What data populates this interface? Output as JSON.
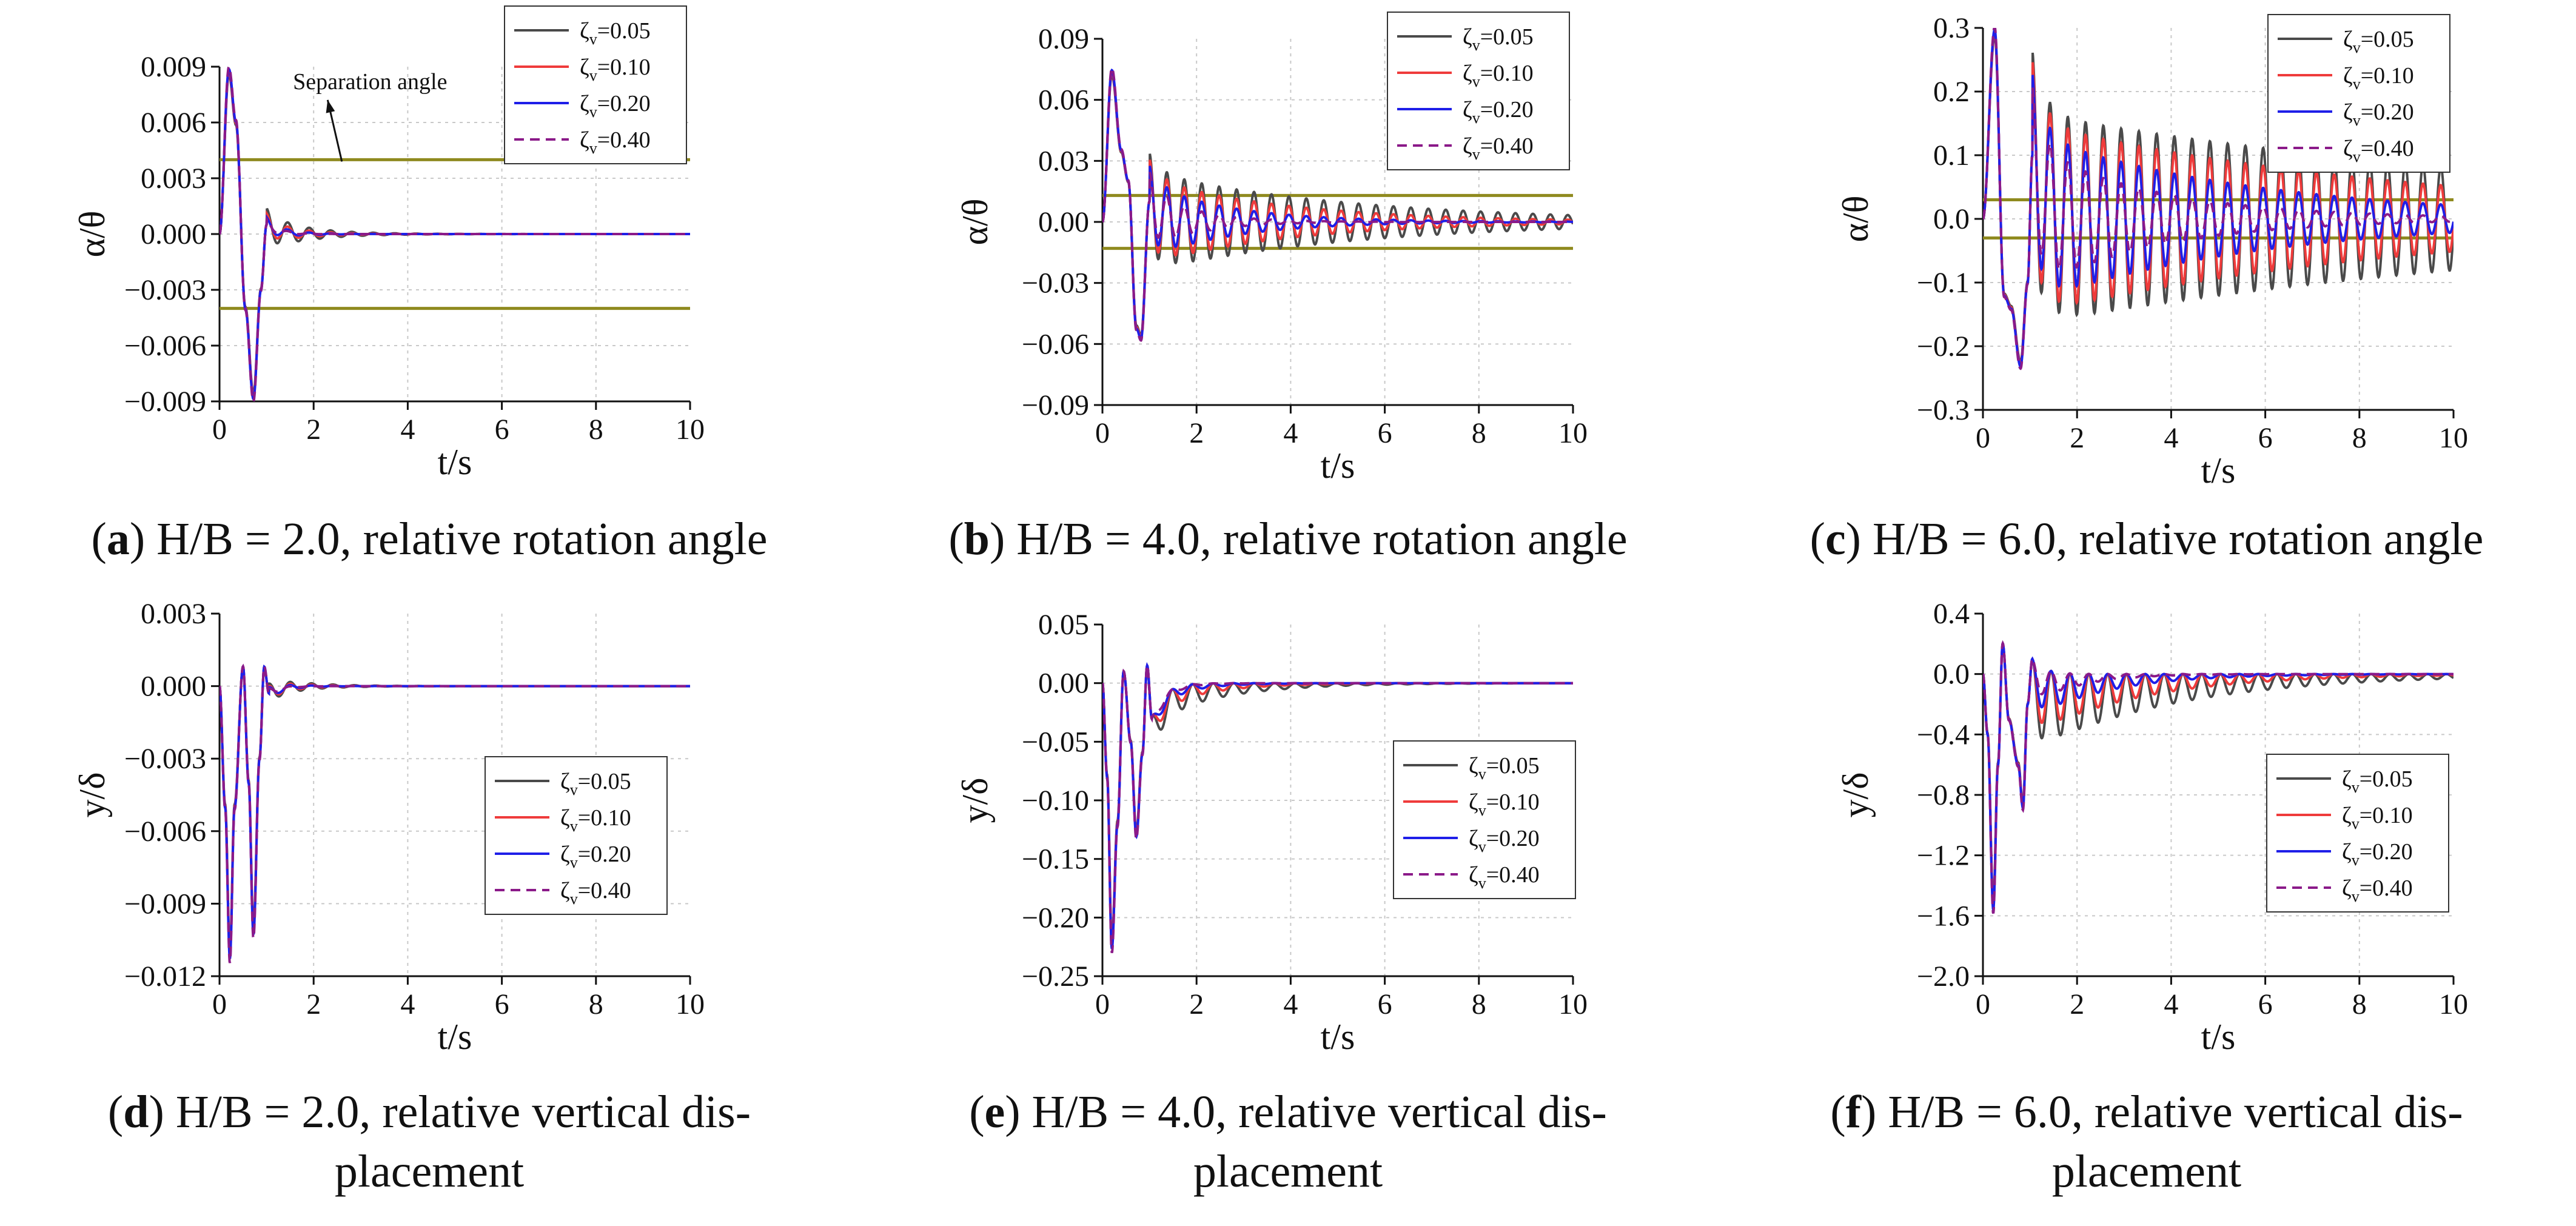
{
  "legend_colors": {
    "z005": "#4a4a4a",
    "z010": "#ef3b3b",
    "z020": "#1f1fe8",
    "z040": "#8b1a89"
  },
  "line_color_separation": "#8f8a1f",
  "chart_data": [
    {
      "id": "a",
      "type": "line",
      "title": "(a) H/B = 2.0, relative rotation angle",
      "caption": {
        "letter": "a",
        "text": " H/B = 2.0, relative rotation angle"
      },
      "xlabel": "t/s",
      "ylabel": "α/θ",
      "xlim": [
        0,
        10
      ],
      "ylim": [
        -0.009,
        0.009
      ],
      "xticks": [
        "0",
        "2",
        "4",
        "6",
        "8",
        "10"
      ],
      "yticks": [
        "0.009",
        "0.006",
        "0.003",
        "0.000",
        "−0.003",
        "−0.006",
        "−0.009"
      ],
      "legend_position": "top-right",
      "series": [
        {
          "name": "ζv=0.05",
          "sub": "v",
          "label_pre": "ζ",
          "label_post": "=0.05",
          "zeta": 0.05,
          "amplitude": 0.0009,
          "style": "solid"
        },
        {
          "name": "ζv=0.10",
          "sub": "v",
          "label_pre": "ζ",
          "label_post": "=0.10",
          "zeta": 0.1,
          "amplitude": 0.0006,
          "style": "solid"
        },
        {
          "name": "ζv=0.20",
          "sub": "v",
          "label_pre": "ζ",
          "label_post": "=0.20",
          "zeta": 0.2,
          "amplitude": 0.0004,
          "style": "solid"
        },
        {
          "name": "ζv=0.40",
          "sub": "v",
          "label_pre": "ζ",
          "label_post": "=0.40",
          "zeta": 0.4,
          "amplitude": 0.0003,
          "style": "dashed"
        }
      ],
      "transient": [
        [
          0,
          0
        ],
        [
          0.2,
          0.0088
        ],
        [
          0.35,
          0.006
        ],
        [
          0.55,
          -0.004
        ],
        [
          0.72,
          -0.0088
        ],
        [
          0.88,
          -0.003
        ],
        [
          1.0,
          0.0005
        ]
      ],
      "osc_freq": 2.2,
      "osc_mode": "decay",
      "osc_decay": 1.4,
      "osc_offset": 0,
      "ref_lines": [
        0.004,
        -0.004
      ],
      "annotation": {
        "text": "Separation angle",
        "x": 3.2,
        "y": 0.0078,
        "arrow_to": [
          2.6,
          0.0039
        ]
      }
    },
    {
      "id": "b",
      "type": "line",
      "title": "(b) H/B = 4.0, relative rotation angle",
      "caption": {
        "letter": "b",
        "text": " H/B = 4.0, relative rotation angle"
      },
      "xlabel": "t/s",
      "ylabel": "α/θ",
      "xlim": [
        0,
        10
      ],
      "ylim": [
        -0.09,
        0.09
      ],
      "xticks": [
        "0",
        "2",
        "4",
        "6",
        "8",
        "10"
      ],
      "yticks": [
        "0.09",
        "0.06",
        "0.03",
        "0.00",
        "−0.03",
        "−0.06",
        "−0.09"
      ],
      "legend_position": "top-right",
      "series": [
        {
          "name": "ζv=0.05",
          "sub": "v",
          "label_pre": "ζ",
          "label_post": "=0.05",
          "zeta": 0.05,
          "amplitude": 0.024,
          "style": "solid"
        },
        {
          "name": "ζv=0.10",
          "sub": "v",
          "label_pre": "ζ",
          "label_post": "=0.10",
          "zeta": 0.1,
          "amplitude": 0.021,
          "style": "solid"
        },
        {
          "name": "ζv=0.20",
          "sub": "v",
          "label_pre": "ζ",
          "label_post": "=0.20",
          "zeta": 0.2,
          "amplitude": 0.018,
          "style": "solid"
        },
        {
          "name": "ζv=0.40",
          "sub": "v",
          "label_pre": "ζ",
          "label_post": "=0.40",
          "zeta": 0.4,
          "amplitude": 0.015,
          "style": "dashed"
        }
      ],
      "transient": [
        [
          0,
          0
        ],
        [
          0.2,
          0.074
        ],
        [
          0.4,
          0.035
        ],
        [
          0.55,
          0.02
        ],
        [
          0.72,
          -0.052
        ],
        [
          0.82,
          -0.057
        ],
        [
          1.0,
          0.01
        ]
      ],
      "osc_freq": 2.7,
      "osc_mode": "decay_slow",
      "osc_decay": 0.22,
      "osc_offset": 0,
      "ref_lines": [
        0.013,
        -0.013
      ]
    },
    {
      "id": "c",
      "type": "line",
      "title": "(c) H/B = 6.0, relative rotation angle",
      "caption": {
        "letter": "c",
        "text": " H/B = 6.0, relative rotation angle"
      },
      "xlabel": "t/s",
      "ylabel": "α/θ",
      "xlim": [
        0,
        10
      ],
      "ylim": [
        -0.3,
        0.3
      ],
      "xticks": [
        "0",
        "2",
        "4",
        "6",
        "8",
        "10"
      ],
      "yticks": [
        "0.3",
        "0.2",
        "0.1",
        "0.0",
        "−0.1",
        "−0.2",
        "−0.3"
      ],
      "legend_position": "top-right",
      "series": [
        {
          "name": "ζv=0.05",
          "sub": "v",
          "label_pre": "ζ",
          "label_post": "=0.05",
          "zeta": 0.05,
          "amplitude": 0.165,
          "style": "solid"
        },
        {
          "name": "ζv=0.10",
          "sub": "v",
          "label_pre": "ζ",
          "label_post": "=0.10",
          "zeta": 0.1,
          "amplitude": 0.15,
          "style": "solid"
        },
        {
          "name": "ζv=0.20",
          "sub": "v",
          "label_pre": "ζ",
          "label_post": "=0.20",
          "zeta": 0.2,
          "amplitude": 0.13,
          "style": "solid"
        },
        {
          "name": "ζv=0.40",
          "sub": "v",
          "label_pre": "ζ",
          "label_post": "=0.40",
          "zeta": 0.4,
          "amplitude": 0.11,
          "style": "dashed"
        }
      ],
      "transient": [
        [
          0,
          0
        ],
        [
          0.25,
          0.295
        ],
        [
          0.45,
          -0.12
        ],
        [
          0.6,
          -0.14
        ],
        [
          0.8,
          -0.23
        ],
        [
          0.95,
          -0.1
        ],
        [
          1.05,
          0.1
        ]
      ],
      "osc_freq": 2.65,
      "osc_mode": "decay_slow",
      "osc_decay": 0.08,
      "osc_offset": 0,
      "ref_lines": [
        0.03,
        -0.03
      ]
    },
    {
      "id": "d",
      "type": "line",
      "title": "(d) H/B = 2.0, relative vertical displacement",
      "caption": {
        "letter": "d",
        "text": " H/B = 2.0, relative vertical dis-",
        "line2": "placement"
      },
      "xlabel": "t/s",
      "ylabel": "y/δ",
      "xlim": [
        0,
        10
      ],
      "ylim": [
        -0.012,
        0.003
      ],
      "xticks": [
        "0",
        "2",
        "4",
        "6",
        "8",
        "10"
      ],
      "yticks": [
        "0.003",
        "0.000",
        "−0.003",
        "−0.006",
        "−0.009",
        "−0.012"
      ],
      "legend_position": "center-right",
      "series": [
        {
          "name": "ζv=0.05",
          "sub": "v",
          "label_pre": "ζ",
          "label_post": "=0.05",
          "zeta": 0.05,
          "amplitude": 0.0004,
          "style": "solid"
        },
        {
          "name": "ζv=0.10",
          "sub": "v",
          "label_pre": "ζ",
          "label_post": "=0.10",
          "zeta": 0.1,
          "amplitude": 0.0003,
          "style": "solid"
        },
        {
          "name": "ζv=0.20",
          "sub": "v",
          "label_pre": "ζ",
          "label_post": "=0.20",
          "zeta": 0.2,
          "amplitude": 0.00025,
          "style": "solid"
        },
        {
          "name": "ζv=0.40",
          "sub": "v",
          "label_pre": "ζ",
          "label_post": "=0.40",
          "zeta": 0.4,
          "amplitude": 0.0002,
          "style": "dashed"
        }
      ],
      "transient": [
        [
          0,
          0
        ],
        [
          0.12,
          -0.005
        ],
        [
          0.22,
          -0.0112
        ],
        [
          0.32,
          -0.005
        ],
        [
          0.5,
          0.0008
        ],
        [
          0.62,
          -0.004
        ],
        [
          0.72,
          -0.0102
        ],
        [
          0.85,
          -0.003
        ],
        [
          0.95,
          0.0008
        ],
        [
          1.05,
          -0.0003
        ]
      ],
      "osc_freq": 2.2,
      "osc_mode": "decay",
      "osc_decay": 1.6,
      "osc_offset": 0,
      "ref_lines": []
    },
    {
      "id": "e",
      "type": "line",
      "title": "(e) H/B = 4.0, relative vertical displacement",
      "caption": {
        "letter": "e",
        "text": " H/B = 4.0, relative vertical dis-",
        "line2": "placement"
      },
      "xlabel": "t/s",
      "ylabel": "y/δ",
      "xlim": [
        0,
        10
      ],
      "ylim": [
        -0.25,
        0.05
      ],
      "xticks": [
        "0",
        "2",
        "4",
        "6",
        "8",
        "10"
      ],
      "yticks": [
        "0.05",
        "0.00",
        "−0.05",
        "−0.10",
        "−0.15",
        "−0.20",
        "−0.25"
      ],
      "legend_position": "center-right",
      "series": [
        {
          "name": "ζv=0.05",
          "sub": "v",
          "label_pre": "ζ",
          "label_post": "=0.05",
          "zeta": 0.05,
          "amplitude": 0.03,
          "style": "solid"
        },
        {
          "name": "ζv=0.10",
          "sub": "v",
          "label_pre": "ζ",
          "label_post": "=0.10",
          "zeta": 0.1,
          "amplitude": 0.022,
          "style": "solid"
        },
        {
          "name": "ζv=0.20",
          "sub": "v",
          "label_pre": "ζ",
          "label_post": "=0.20",
          "zeta": 0.2,
          "amplitude": 0.016,
          "style": "solid"
        },
        {
          "name": "ζv=0.40",
          "sub": "v",
          "label_pre": "ζ",
          "label_post": "=0.40",
          "zeta": 0.4,
          "amplitude": 0.012,
          "style": "dashed"
        }
      ],
      "transient": [
        [
          0,
          0
        ],
        [
          0.1,
          -0.08
        ],
        [
          0.2,
          -0.225
        ],
        [
          0.32,
          -0.12
        ],
        [
          0.45,
          0.01
        ],
        [
          0.6,
          -0.05
        ],
        [
          0.72,
          -0.13
        ],
        [
          0.85,
          -0.06
        ],
        [
          0.95,
          0.015
        ],
        [
          1.05,
          -0.03
        ]
      ],
      "osc_freq": 2.3,
      "osc_mode": "neg_decay",
      "osc_decay": 0.7,
      "osc_offset": 0,
      "ref_lines": []
    },
    {
      "id": "f",
      "type": "line",
      "title": "(f) H/B = 6.0, relative vertical displacement",
      "caption": {
        "letter": "f",
        "text": " H/B = 6.0, relative vertical dis-",
        "line2": "placement"
      },
      "xlabel": "t/s",
      "ylabel": "y/δ",
      "xlim": [
        0,
        10
      ],
      "ylim": [
        -2.0,
        0.4
      ],
      "xticks": [
        "0",
        "2",
        "4",
        "6",
        "8",
        "10"
      ],
      "yticks": [
        "0.4",
        "0.0",
        "−0.4",
        "−0.8",
        "−1.2",
        "−1.6",
        "−2.0"
      ],
      "legend_position": "center-right",
      "series": [
        {
          "name": "ζv=0.05",
          "sub": "v",
          "label_pre": "ζ",
          "label_post": "=0.05",
          "zeta": 0.05,
          "amplitude": 0.5,
          "style": "solid"
        },
        {
          "name": "ζv=0.10",
          "sub": "v",
          "label_pre": "ζ",
          "label_post": "=0.10",
          "zeta": 0.1,
          "amplitude": 0.4,
          "style": "solid"
        },
        {
          "name": "ζv=0.20",
          "sub": "v",
          "label_pre": "ζ",
          "label_post": "=0.20",
          "zeta": 0.2,
          "amplitude": 0.3,
          "style": "solid"
        },
        {
          "name": "ζv=0.40",
          "sub": "v",
          "label_pre": "ζ",
          "label_post": "=0.40",
          "zeta": 0.4,
          "amplitude": 0.22,
          "style": "dashed"
        }
      ],
      "transient": [
        [
          0,
          0
        ],
        [
          0.1,
          -0.4
        ],
        [
          0.22,
          -1.55
        ],
        [
          0.32,
          -0.6
        ],
        [
          0.42,
          0.2
        ],
        [
          0.55,
          -0.3
        ],
        [
          0.75,
          -0.6
        ],
        [
          0.85,
          -0.88
        ],
        [
          0.95,
          -0.2
        ],
        [
          1.05,
          0.1
        ]
      ],
      "osc_freq": 2.5,
      "osc_mode": "neg_decay",
      "osc_decay": 0.35,
      "osc_offset": 0,
      "ref_lines": []
    }
  ]
}
